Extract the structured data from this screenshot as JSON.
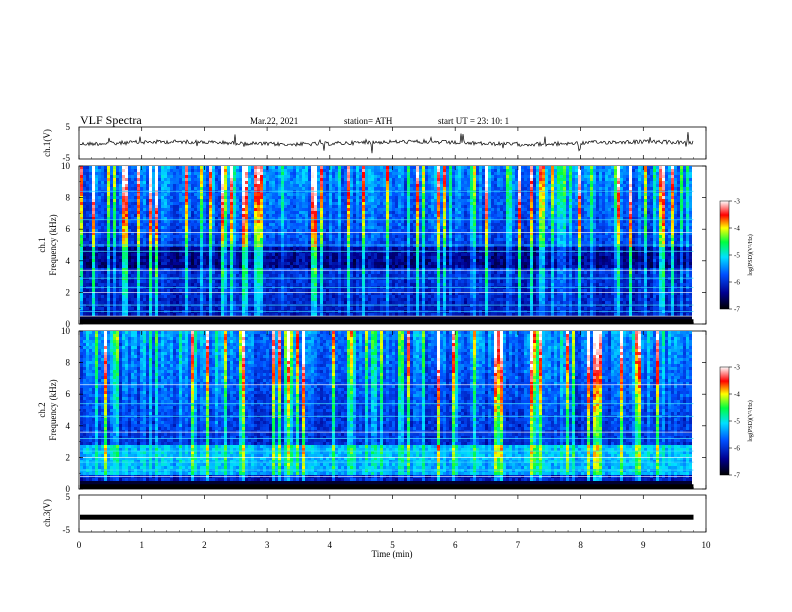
{
  "header": {
    "title": "VLF  Spectra",
    "date": "Mar.22, 2021",
    "station": "station= ATH",
    "start": "start  UT  =    23: 10: 1"
  },
  "chart_data": [
    {
      "type": "line",
      "name": "ch1-waveform",
      "ylabel": "ch.1(V)",
      "ylim": [
        -5,
        5
      ],
      "yticks": [
        "5",
        "-5"
      ],
      "xlim": [
        0,
        10
      ]
    },
    {
      "type": "heatmap",
      "name": "ch1-spectrogram",
      "ylabel": "ch.1\nFrequency (kHz)",
      "ylabel_lines": [
        "ch.1",
        "Frequency (kHz)"
      ],
      "ylim": [
        0,
        10
      ],
      "yticks": [
        "0",
        "2",
        "4",
        "6",
        "8",
        "10"
      ],
      "xlim": [
        0,
        9.8
      ],
      "colorbar": {
        "label": "log(PSD)(V²/Hz)",
        "range": [
          -7,
          -3
        ],
        "ticks": [
          "-3",
          "-4",
          "-5",
          "-6",
          "-7"
        ]
      },
      "bands_khz": [
        0.5,
        0.8,
        1.2,
        2.0,
        2.3,
        2.9,
        3.4,
        4.6,
        5.0,
        5.8,
        6.6,
        8.4
      ]
    },
    {
      "type": "heatmap",
      "name": "ch2-spectrogram",
      "ylabel": "ch.2\nFrequency (kHz)",
      "ylabel_lines": [
        "ch.2",
        "Frequency (kHz)"
      ],
      "ylim": [
        0,
        10
      ],
      "yticks": [
        "0",
        "2",
        "4",
        "6",
        "8",
        "10"
      ],
      "xlim": [
        0,
        9.8
      ],
      "colorbar": {
        "label": "log(PSD)(V²/Hz)",
        "range": [
          -7,
          -3
        ],
        "ticks": [
          "-3",
          "-4",
          "-5",
          "-6",
          "-7"
        ]
      },
      "bands_khz": [
        0.8,
        1.2,
        1.7,
        2.0,
        2.4,
        3.2,
        3.6,
        4.6,
        5.4,
        6.6
      ]
    },
    {
      "type": "line",
      "name": "ch3-waveform",
      "ylabel": "ch.3(V)",
      "ylim": [
        -5,
        5
      ],
      "yticks": [
        "5",
        "-5"
      ],
      "xlim": [
        0,
        10
      ],
      "level_v": -1
    }
  ],
  "xaxis": {
    "label": "Time  (min)",
    "range": [
      0,
      10
    ],
    "ticks": [
      "0",
      "1",
      "2",
      "3",
      "4",
      "5",
      "6",
      "7",
      "8",
      "9",
      "10"
    ]
  },
  "colors": {
    "low": "#000080",
    "mid": "#00c8ff",
    "high": "#ff0000",
    "trace": "#000000"
  }
}
